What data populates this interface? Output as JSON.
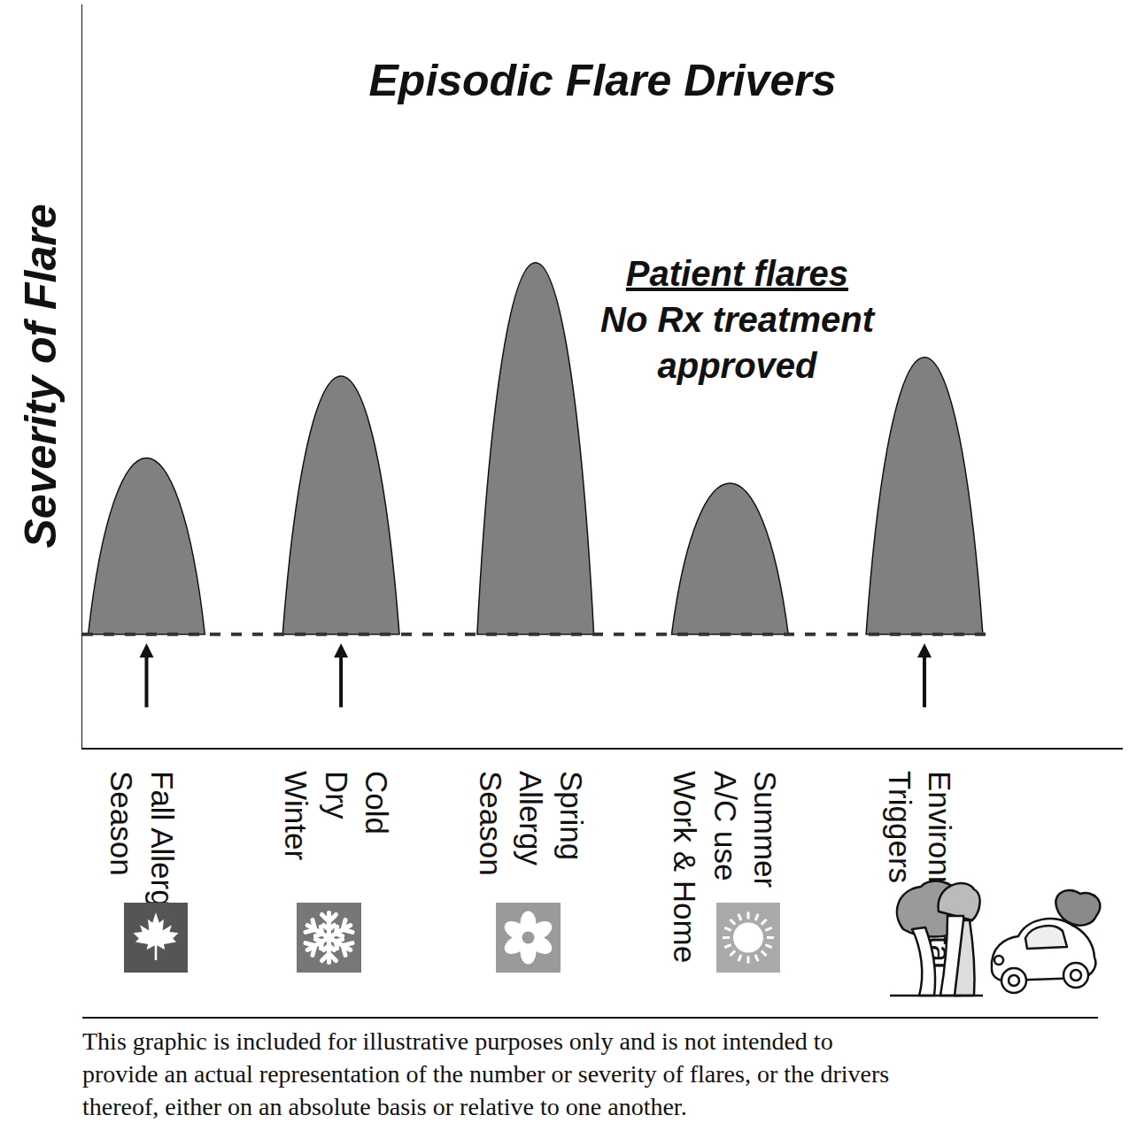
{
  "chart_data": {
    "type": "area",
    "title": "Episodic Flare Drivers",
    "ylabel": "Severity of Flare",
    "categories": [
      "Fall Allergy\nSeason",
      "Cold\nDry\nWinter",
      "Spring\nAllergy\nSeason",
      "Summer\nA/C use\nWork & Home",
      "Environmental\nTriggers"
    ],
    "values": [
      28,
      41,
      59,
      24,
      44
    ],
    "baseline": 0,
    "arrows": [
      true,
      true,
      false,
      false,
      true
    ],
    "color": "#808080",
    "ylim": [
      -18,
      100
    ],
    "yticks": [],
    "tick_labels": "x",
    "annotation": {
      "heading": "Patient flares",
      "text": "No Rx treatment\napproved"
    },
    "footnote": "This graphic is included for illustrative purposes only and is not intended to\nprovide an actual representation of the number or severity of flares, or the drivers\nthereof, either on an absolute basis or relative to one another."
  }
}
